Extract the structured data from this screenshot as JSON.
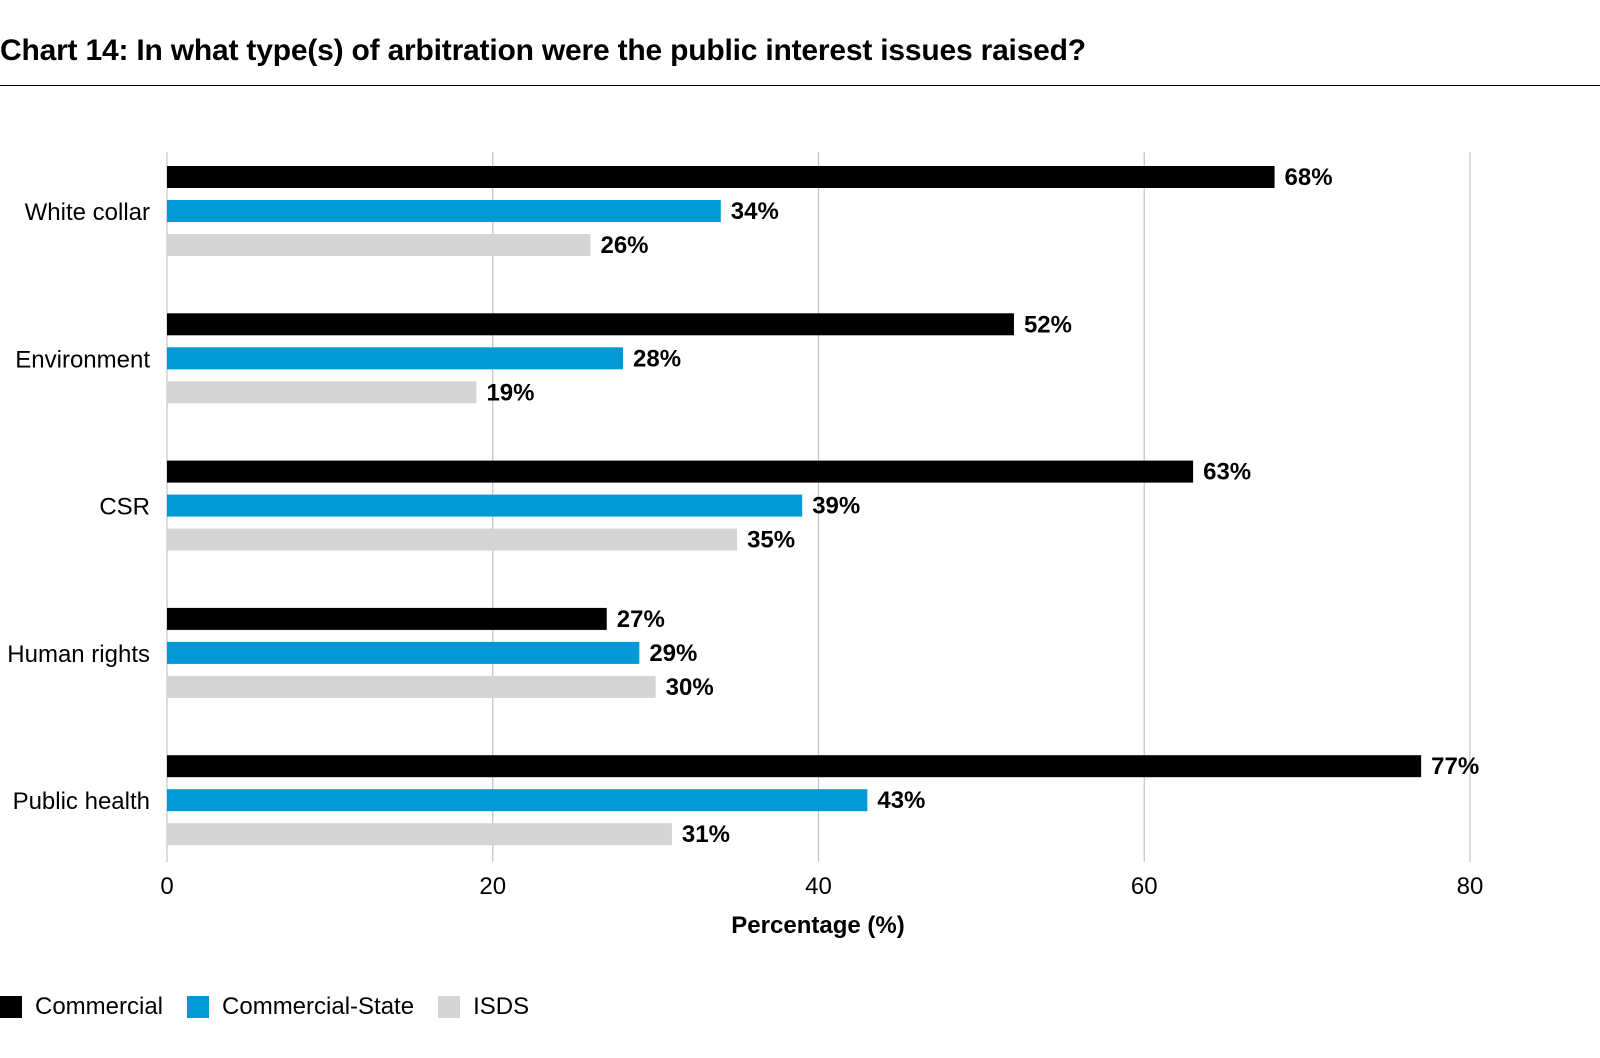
{
  "chart_data": {
    "type": "bar",
    "orientation": "horizontal",
    "title": "Chart 14: In what type(s) of arbitration were the public interest issues raised?",
    "xlabel": "Percentage (%)",
    "ylabel": "",
    "xlim": [
      0,
      80
    ],
    "xticks": [
      0,
      20,
      40,
      60,
      80
    ],
    "grid": true,
    "legend_position": "bottom-left",
    "categories": [
      "White collar",
      "Environment",
      "CSR",
      "Human rights",
      "Public health"
    ],
    "series": [
      {
        "name": "Commercial",
        "color": "#000000",
        "values": [
          68,
          52,
          63,
          27,
          77
        ],
        "labels": [
          "68%",
          "52%",
          "63%",
          "27%",
          "77%"
        ]
      },
      {
        "name": "Commercial-State",
        "color": "#0099d5",
        "values": [
          34,
          28,
          39,
          29,
          43
        ],
        "labels": [
          "34%",
          "28%",
          "39%",
          "29%",
          "43%"
        ]
      },
      {
        "name": "ISDS",
        "color": "#d5d5d5",
        "values": [
          26,
          19,
          35,
          30,
          31
        ],
        "labels": [
          "26%",
          "19%",
          "35%",
          "30%",
          "31%"
        ]
      }
    ]
  }
}
